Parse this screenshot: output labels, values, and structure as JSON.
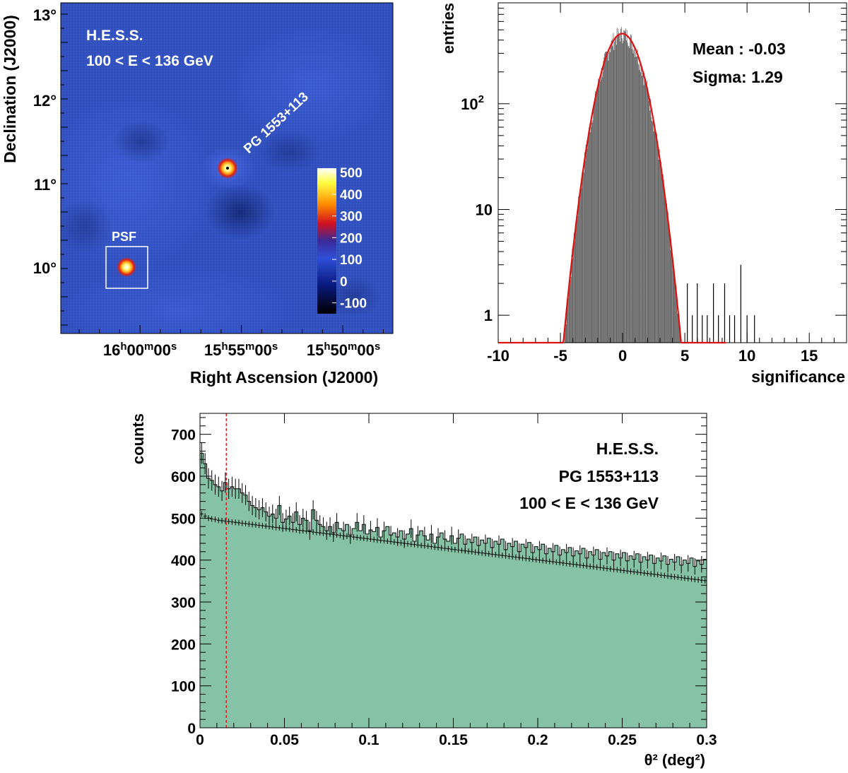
{
  "chart_data": [
    {
      "type": "heatmap",
      "annotation": [
        "H.E.S.S.",
        "100 < E < 136 GeV"
      ],
      "source_label": "PG 1553+113",
      "psf_label": "PSF",
      "xlabel": "Right Ascension (J2000)",
      "ylabel": "Declination (J2000)",
      "x_ticks": [
        {
          "h": "16",
          "m": "00",
          "s": "00"
        },
        {
          "h": "15",
          "m": "55",
          "s": "00"
        },
        {
          "h": "15",
          "m": "50",
          "s": "00"
        }
      ],
      "y_ticks": [
        "13°",
        "12°",
        "11°",
        "10°"
      ],
      "colorbar_ticks": [
        "500",
        "400",
        "300",
        "200",
        "100",
        "0",
        "-100"
      ],
      "colorbar_range": [
        -150,
        520
      ],
      "ra_units": {
        "h": "h",
        "m": "m",
        "s": "s"
      },
      "colors": {
        "background": "#2f4fc0",
        "hot": "#ffffe0",
        "ring": "#d03010"
      }
    },
    {
      "type": "line",
      "xlabel": "significance",
      "ylabel": "entries",
      "y_scale": "log",
      "xlim": [
        -10,
        18
      ],
      "ylim": [
        0.55,
        900
      ],
      "x_ticks": [
        "-10",
        "-5",
        "0",
        "5",
        "10",
        "15"
      ],
      "y_ticks": [
        {
          "value": 1,
          "label": "1"
        },
        {
          "value": 10,
          "label": "10"
        },
        {
          "value": 100,
          "label": "10",
          "sup": "2"
        }
      ],
      "stats": [
        "Mean : -0.03",
        "Sigma: 1.29"
      ],
      "gaussian": {
        "mean": -0.03,
        "sigma": 1.29,
        "amplitude": 460
      },
      "excess_tail": [
        {
          "x": 5.2,
          "y": 2
        },
        {
          "x": 5.6,
          "y": 1
        },
        {
          "x": 6.0,
          "y": 2
        },
        {
          "x": 6.4,
          "y": 1
        },
        {
          "x": 6.8,
          "y": 1
        },
        {
          "x": 7.3,
          "y": 2
        },
        {
          "x": 7.7,
          "y": 1
        },
        {
          "x": 8.2,
          "y": 2
        },
        {
          "x": 8.6,
          "y": 1
        },
        {
          "x": 9.0,
          "y": 1
        },
        {
          "x": 9.5,
          "y": 3
        },
        {
          "x": 10.0,
          "y": 1
        },
        {
          "x": 10.6,
          "y": 1
        }
      ],
      "colors": {
        "fit": "#e01010",
        "hist": "#000000"
      }
    },
    {
      "type": "bar",
      "xlabel": "θ² (deg²)",
      "ylabel": "counts",
      "xlim": [
        0,
        0.3
      ],
      "ylim": [
        0,
        750
      ],
      "x_ticks": [
        "0",
        "0.05",
        "0.1",
        "0.15",
        "0.2",
        "0.25",
        "0.3"
      ],
      "y_ticks": [
        "0",
        "100",
        "200",
        "300",
        "400",
        "500",
        "600",
        "700"
      ],
      "annotation": [
        "H.E.S.S.",
        "PG 1553+113",
        "100 < E < 136 GeV"
      ],
      "cut": 0.0156,
      "bin_width": 0.002,
      "on_counts": [
        655,
        630,
        595,
        590,
        580,
        575,
        565,
        585,
        570,
        575,
        570,
        570,
        560,
        555,
        540,
        530,
        525,
        520,
        525,
        515,
        505,
        510,
        500,
        530,
        490,
        498,
        505,
        490,
        515,
        485,
        500,
        495,
        470,
        520,
        495,
        485,
        480,
        470,
        480,
        465,
        490,
        475,
        470,
        485,
        460,
        475,
        490,
        470,
        485,
        462,
        472,
        468,
        478,
        455,
        470,
        480,
        460,
        465,
        455,
        470,
        450,
        462,
        475,
        445,
        460,
        470,
        458,
        448,
        462,
        440,
        455,
        465,
        450,
        445,
        458,
        440,
        452,
        462,
        438,
        450,
        442,
        455,
        435,
        448,
        440,
        452,
        430,
        445,
        438,
        450,
        425,
        440,
        432,
        445,
        420,
        438,
        430,
        442,
        418,
        432,
        425,
        438,
        415,
        428,
        420,
        435,
        412,
        425,
        418,
        430,
        410,
        422,
        415,
        428,
        405,
        420,
        412,
        425,
        402,
        418,
        410,
        420,
        400,
        415,
        405,
        418,
        398,
        410,
        402,
        415,
        395,
        408,
        400,
        412,
        392,
        405,
        398,
        410,
        390,
        402,
        395,
        408,
        388,
        400,
        392,
        405,
        385,
        398,
        390,
        402
      ],
      "off_counts": [
        510,
        505,
        500,
        498,
        497,
        495,
        494,
        493,
        492,
        491,
        490,
        489,
        488,
        487,
        486,
        485,
        484,
        483,
        482,
        481,
        480,
        479,
        478,
        477,
        476,
        475,
        474,
        473,
        472,
        471,
        470,
        469,
        468,
        467,
        466,
        465,
        464,
        463,
        462,
        461,
        460,
        459,
        458,
        457,
        456,
        455,
        454,
        453,
        452,
        451,
        450,
        449,
        448,
        447,
        446,
        445,
        444,
        443,
        442,
        441,
        440,
        439,
        438,
        437,
        436,
        435,
        434,
        433,
        432,
        431,
        430,
        429,
        428,
        427,
        426,
        425,
        424,
        423,
        422,
        421,
        420,
        419,
        418,
        417,
        416,
        415,
        414,
        413,
        412,
        411,
        410,
        409,
        408,
        407,
        406,
        405,
        404,
        403,
        402,
        401,
        400,
        399,
        398,
        397,
        396,
        395,
        394,
        393,
        392,
        391,
        390,
        389,
        388,
        387,
        386,
        385,
        384,
        383,
        382,
        381,
        380,
        379,
        378,
        377,
        376,
        375,
        374,
        373,
        372,
        371,
        370,
        369,
        368,
        367,
        366,
        365,
        364,
        363,
        362,
        361,
        360,
        359,
        358,
        357,
        356,
        355,
        354,
        353,
        352,
        351
      ],
      "colors": {
        "fill": "#86c2a5",
        "cut_line": "#e02020"
      }
    }
  ]
}
